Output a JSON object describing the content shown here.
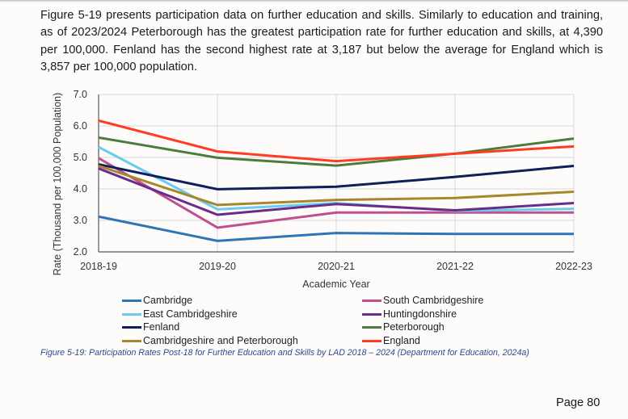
{
  "paragraph": "Figure 5-19 presents participation data on further education and skills. Similarly to education and training, as of 2023/2024 Peterborough has the greatest participation rate for further education and skills, at 4,390 per 100,000. Fenland has the second highest rate at 3,187 but below the average for England which is 3,857 per 100,000 population.",
  "caption": "Figure 5-19: Participation Rates Post-18 for Further Education and Skills by LAD 2018 – 2024 (Department for Education, 2024a)",
  "page_label": "Page 80",
  "chart_data": {
    "type": "line",
    "xlabel": "Academic Year",
    "ylabel": "Rate (Thousand per 100,000 Population)",
    "ylim": [
      2.0,
      7.0
    ],
    "yticks": [
      "2.0",
      "3.0",
      "4.0",
      "5.0",
      "6.0",
      "7.0"
    ],
    "grid": true,
    "legend_position": "bottom",
    "categories": [
      "2018-19",
      "2019-20",
      "2020-21",
      "2021-22",
      "2022-23"
    ],
    "series": [
      {
        "name": "Cambridge",
        "color": "#2e75b6",
        "values": [
          3.12,
          2.35,
          2.6,
          2.57,
          2.57
        ]
      },
      {
        "name": "South Cambridgeshire",
        "color": "#c0508c",
        "values": [
          4.98,
          2.77,
          3.25,
          3.25,
          3.25
        ]
      },
      {
        "name": "East Cambridgeshire",
        "color": "#6ccbef",
        "values": [
          5.33,
          3.35,
          3.55,
          3.3,
          3.37
        ]
      },
      {
        "name": "Huntingdonshire",
        "color": "#6a2c8a",
        "values": [
          4.65,
          3.18,
          3.52,
          3.32,
          3.55
        ]
      },
      {
        "name": "Fenland",
        "color": "#0f1f5c",
        "values": [
          4.78,
          3.99,
          4.07,
          4.38,
          4.73
        ]
      },
      {
        "name": "Peterborough",
        "color": "#4a7d3c",
        "values": [
          5.63,
          4.99,
          4.74,
          5.12,
          5.6
        ]
      },
      {
        "name": "Cambridgeshire and Peterborough",
        "color": "#a8862a",
        "values": [
          4.73,
          3.49,
          3.65,
          3.71,
          3.91
        ]
      },
      {
        "name": "England",
        "color": "#ff3b22",
        "values": [
          6.17,
          5.19,
          4.88,
          5.12,
          5.35
        ]
      }
    ]
  }
}
